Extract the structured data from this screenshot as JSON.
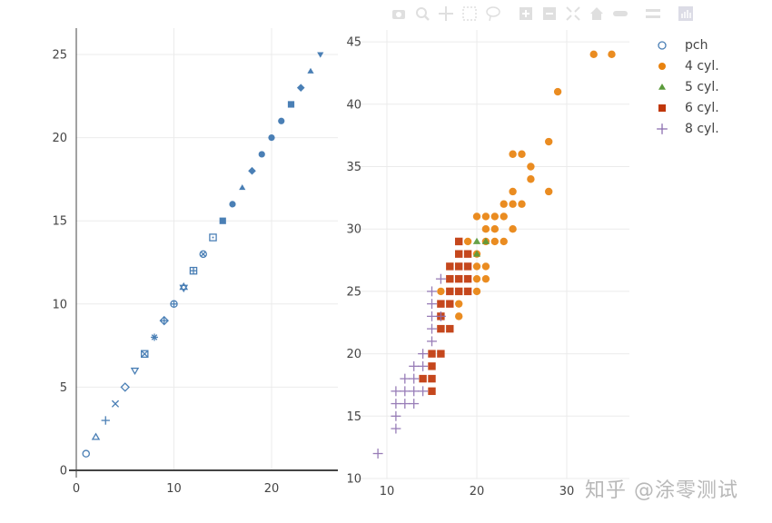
{
  "modebar": {
    "buttons": [
      "camera-icon",
      "zoom-icon",
      "pan-icon",
      "box-select-icon",
      "lasso-icon",
      "zoom-in-icon",
      "zoom-out-icon",
      "autoscale-icon",
      "home-icon",
      "spike-lines-icon",
      "compare-hover-icon",
      "plotly-logo-icon"
    ]
  },
  "legend": {
    "items": [
      {
        "label": "pch",
        "symbol": "circle-open",
        "color": "#4a7fb5"
      },
      {
        "label": "4 cyl.",
        "symbol": "circle",
        "color": "#e8820e"
      },
      {
        "label": "5 cyl.",
        "symbol": "triangle-up",
        "color": "#5a9a3a"
      },
      {
        "label": "6 cyl.",
        "symbol": "square",
        "color": "#c0370a"
      },
      {
        "label": "8 cyl.",
        "symbol": "cross-thin",
        "color": "#8d6fb0"
      }
    ]
  },
  "watermark": "知乎 @涂零测试",
  "chart_data": [
    {
      "type": "scatter",
      "name": "pch",
      "title": "",
      "xlabel": "",
      "ylabel": "",
      "xlim": [
        0,
        26.5
      ],
      "ylim": [
        -0.5,
        26.5
      ],
      "x_ticks": [
        0,
        10,
        20
      ],
      "y_ticks": [
        0,
        5,
        10,
        15,
        20,
        25
      ],
      "grid": true,
      "color": "#4a7fb5",
      "x": [
        1,
        2,
        3,
        4,
        5,
        6,
        7,
        8,
        9,
        10,
        11,
        12,
        13,
        14,
        15,
        16,
        17,
        18,
        19,
        20,
        21,
        22,
        23,
        24,
        25
      ],
      "y": [
        1,
        2,
        3,
        4,
        5,
        6,
        7,
        8,
        9,
        10,
        11,
        12,
        13,
        14,
        15,
        16,
        17,
        18,
        19,
        20,
        21,
        22,
        23,
        24,
        25
      ],
      "symbols": [
        "circle-open",
        "triangle-up-open",
        "cross-thin",
        "x-thin",
        "diamond-open",
        "triangle-down-open",
        "square-x-open",
        "asterisk",
        "diamond-cross-open",
        "circle-cross-open",
        "hexagram-open",
        "square-cross-open",
        "circle-x-open",
        "square-dot-open",
        "square",
        "circle",
        "triangle-up",
        "diamond",
        "circle",
        "circle",
        "circle",
        "square",
        "diamond",
        "triangle-up",
        "triangle-down"
      ]
    },
    {
      "type": "scatter",
      "title": "",
      "xlabel": "",
      "ylabel": "",
      "xlim": [
        7.5,
        34.5
      ],
      "ylim": [
        10,
        46
      ],
      "x_ticks": [
        10,
        20,
        30
      ],
      "y_ticks": [
        10,
        15,
        20,
        25,
        30,
        35,
        40,
        45
      ],
      "grid": true,
      "legend_position": "right",
      "series": [
        {
          "name": "4 cyl.",
          "symbol": "circle",
          "color": "#e8820e",
          "points": [
            [
              33,
              44
            ],
            [
              35,
              44
            ],
            [
              29,
              41
            ],
            [
              28,
              37
            ],
            [
              24,
              36
            ],
            [
              25,
              36
            ],
            [
              26,
              35
            ],
            [
              26,
              34
            ],
            [
              24,
              33
            ],
            [
              28,
              33
            ],
            [
              23,
              32
            ],
            [
              24,
              32
            ],
            [
              25,
              32
            ],
            [
              20,
              31
            ],
            [
              21,
              31
            ],
            [
              22,
              31
            ],
            [
              23,
              31
            ],
            [
              21,
              30
            ],
            [
              22,
              30
            ],
            [
              24,
              30
            ],
            [
              19,
              29
            ],
            [
              21,
              29
            ],
            [
              22,
              29
            ],
            [
              23,
              29
            ],
            [
              20,
              28
            ],
            [
              20,
              27
            ],
            [
              21,
              27
            ],
            [
              20,
              26
            ],
            [
              21,
              26
            ],
            [
              16,
              25
            ],
            [
              20,
              25
            ],
            [
              18,
              24
            ],
            [
              18,
              23
            ]
          ]
        },
        {
          "name": "5 cyl.",
          "symbol": "triangle-up",
          "color": "#5a9a3a",
          "points": [
            [
              20,
              29
            ],
            [
              21,
              29
            ],
            [
              20,
              28
            ]
          ]
        },
        {
          "name": "6 cyl.",
          "symbol": "square",
          "color": "#c0370a",
          "points": [
            [
              18,
              29
            ],
            [
              18,
              28
            ],
            [
              19,
              28
            ],
            [
              17,
              27
            ],
            [
              18,
              27
            ],
            [
              19,
              27
            ],
            [
              17,
              26
            ],
            [
              18,
              26
            ],
            [
              19,
              26
            ],
            [
              17,
              25
            ],
            [
              18,
              25
            ],
            [
              19,
              25
            ],
            [
              16,
              24
            ],
            [
              17,
              24
            ],
            [
              16,
              23
            ],
            [
              16,
              22
            ],
            [
              17,
              22
            ],
            [
              15,
              20
            ],
            [
              16,
              20
            ],
            [
              15,
              19
            ],
            [
              14,
              18
            ],
            [
              15,
              18
            ],
            [
              15,
              17
            ]
          ]
        },
        {
          "name": "8 cyl.",
          "symbol": "cross-thin",
          "color": "#8d6fb0",
          "points": [
            [
              16,
              26
            ],
            [
              15,
              25
            ],
            [
              15,
              24
            ],
            [
              15,
              23
            ],
            [
              16,
              23
            ],
            [
              15,
              22
            ],
            [
              15,
              21
            ],
            [
              14,
              20
            ],
            [
              13,
              19
            ],
            [
              14,
              19
            ],
            [
              12,
              18
            ],
            [
              13,
              18
            ],
            [
              11,
              17
            ],
            [
              12,
              17
            ],
            [
              13,
              17
            ],
            [
              14,
              17
            ],
            [
              11,
              16
            ],
            [
              12,
              16
            ],
            [
              13,
              16
            ],
            [
              11,
              15
            ],
            [
              11,
              14
            ],
            [
              9,
              12
            ]
          ]
        }
      ]
    }
  ]
}
